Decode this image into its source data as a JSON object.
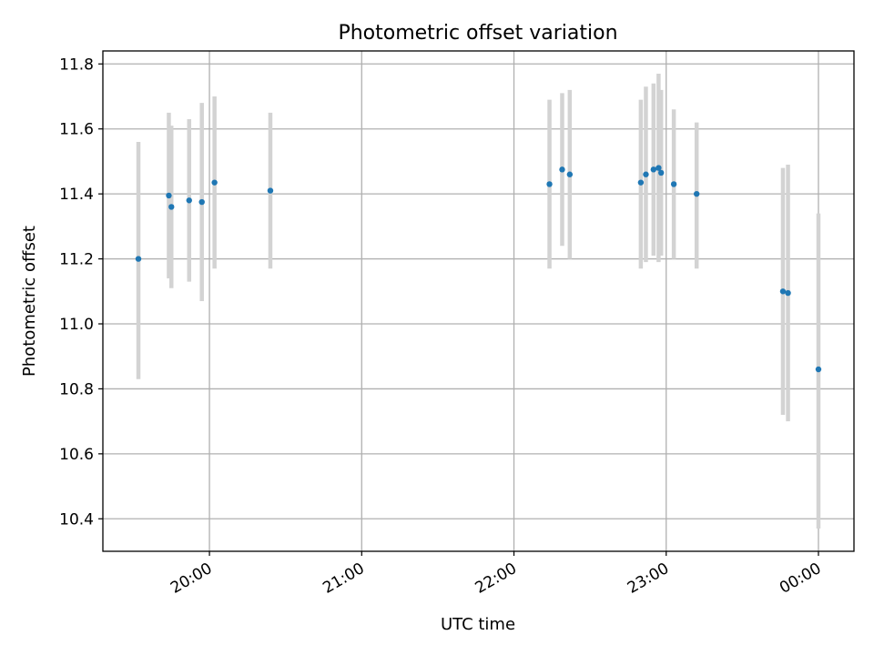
{
  "chart_data": {
    "type": "scatter",
    "title": "Photometric offset variation",
    "xlabel": "UTC time",
    "ylabel": "Photometric offset",
    "xlim": [
      "19:18",
      "00:14"
    ],
    "ylim": [
      10.3,
      11.84
    ],
    "x_ticks": [
      "20:00",
      "21:00",
      "22:00",
      "23:00",
      "00:00"
    ],
    "y_ticks": [
      10.4,
      10.6,
      10.8,
      11.0,
      11.2,
      11.4,
      11.6,
      11.8
    ],
    "grid": true,
    "colors": {
      "marker": "#1f77b4",
      "errorbar": "#d3d3d3",
      "grid": "#b0b0b0"
    },
    "series": [
      {
        "points": [
          {
            "t": "19:32",
            "y": 11.2,
            "lo": 10.83,
            "hi": 11.56
          },
          {
            "t": "19:44",
            "y": 11.395,
            "lo": 11.14,
            "hi": 11.65
          },
          {
            "t": "19:45",
            "y": 11.36,
            "lo": 11.11,
            "hi": 11.61
          },
          {
            "t": "19:52",
            "y": 11.38,
            "lo": 11.13,
            "hi": 11.63
          },
          {
            "t": "19:57",
            "y": 11.375,
            "lo": 11.07,
            "hi": 11.68
          },
          {
            "t": "20:02",
            "y": 11.435,
            "lo": 11.17,
            "hi": 11.7
          },
          {
            "t": "20:24",
            "y": 11.41,
            "lo": 11.17,
            "hi": 11.65
          },
          {
            "t": "22:14",
            "y": 11.43,
            "lo": 11.17,
            "hi": 11.69
          },
          {
            "t": "22:19",
            "y": 11.475,
            "lo": 11.24,
            "hi": 11.71
          },
          {
            "t": "22:22",
            "y": 11.46,
            "lo": 11.2,
            "hi": 11.72
          },
          {
            "t": "22:50",
            "y": 11.435,
            "lo": 11.17,
            "hi": 11.69
          },
          {
            "t": "22:52",
            "y": 11.46,
            "lo": 11.19,
            "hi": 11.73
          },
          {
            "t": "22:55",
            "y": 11.475,
            "lo": 11.21,
            "hi": 11.74
          },
          {
            "t": "22:57",
            "y": 11.48,
            "lo": 11.19,
            "hi": 11.77
          },
          {
            "t": "22:58",
            "y": 11.465,
            "lo": 11.21,
            "hi": 11.72
          },
          {
            "t": "23:03",
            "y": 11.43,
            "lo": 11.2,
            "hi": 11.66
          },
          {
            "t": "23:12",
            "y": 11.4,
            "lo": 11.17,
            "hi": 11.62
          },
          {
            "t": "23:46",
            "y": 11.1,
            "lo": 10.72,
            "hi": 11.48
          },
          {
            "t": "23:48",
            "y": 11.095,
            "lo": 10.7,
            "hi": 11.49
          },
          {
            "t": "00:00",
            "y": 10.86,
            "lo": 10.37,
            "hi": 11.34
          }
        ]
      }
    ]
  }
}
